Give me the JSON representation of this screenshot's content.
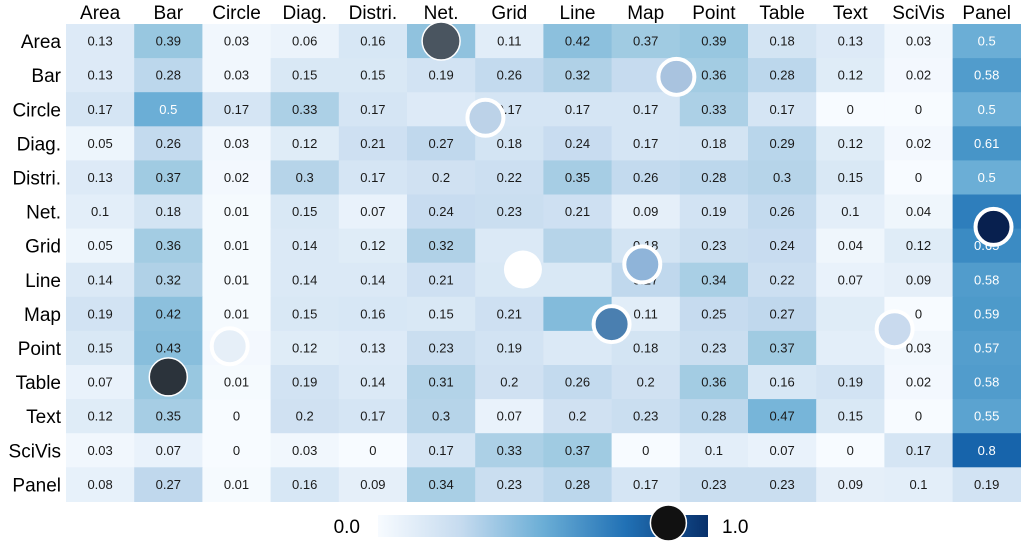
{
  "chart_data": {
    "type": "heatmap",
    "columns": [
      "Area",
      "Bar",
      "Circle",
      "Diag.",
      "Distri.",
      "Net.",
      "Grid",
      "Line",
      "Map",
      "Point",
      "Table",
      "Text",
      "SciVis",
      "Panel"
    ],
    "rows": [
      "Area",
      "Bar",
      "Circle",
      "Diag.",
      "Distri.",
      "Net.",
      "Grid",
      "Line",
      "Map",
      "Point",
      "Table",
      "Text",
      "SciVis",
      "Panel"
    ],
    "values": [
      [
        0.13,
        0.39,
        0.03,
        0.06,
        0.16,
        0.41,
        0.11,
        0.42,
        0.37,
        0.39,
        0.18,
        0.13,
        0.03,
        0.5
      ],
      [
        0.13,
        0.28,
        0.03,
        0.15,
        0.15,
        0.19,
        0.26,
        0.32,
        0.25,
        0.36,
        0.28,
        0.12,
        0.02,
        0.58
      ],
      [
        0.17,
        0.5,
        0.17,
        0.33,
        0.17,
        0.13,
        0.17,
        0.17,
        0.17,
        0.33,
        0.17,
        0,
        0,
        0.5
      ],
      [
        0.05,
        0.26,
        0.03,
        0.12,
        0.21,
        0.27,
        0.18,
        0.24,
        0.17,
        0.18,
        0.29,
        0.12,
        0.02,
        0.61
      ],
      [
        0.13,
        0.37,
        0.02,
        0.3,
        0.17,
        0.2,
        0.22,
        0.35,
        0.26,
        0.28,
        0.3,
        0.15,
        0,
        0.5
      ],
      [
        0.1,
        0.18,
        0.01,
        0.15,
        0.07,
        0.24,
        0.23,
        0.21,
        0.09,
        0.19,
        0.26,
        0.1,
        0.04,
        0.7
      ],
      [
        0.05,
        0.36,
        0.01,
        0.14,
        0.12,
        0.32,
        0.14,
        0.3,
        0.18,
        0.23,
        0.24,
        0.04,
        0.12,
        0.65
      ],
      [
        0.14,
        0.32,
        0.01,
        0.14,
        0.14,
        0.21,
        0.15,
        0.15,
        0.27,
        0.34,
        0.22,
        0.07,
        0.09,
        0.58
      ],
      [
        0.19,
        0.42,
        0.01,
        0.15,
        0.16,
        0.15,
        0.21,
        0.44,
        0.11,
        0.25,
        0.27,
        0.12,
        0,
        0.59
      ],
      [
        0.15,
        0.43,
        0.02,
        0.12,
        0.13,
        0.23,
        0.19,
        0.14,
        0.18,
        0.23,
        0.37,
        0.1,
        0.03,
        0.57
      ],
      [
        0.07,
        0.39,
        0.01,
        0.19,
        0.14,
        0.31,
        0.2,
        0.26,
        0.2,
        0.36,
        0.16,
        0.19,
        0.02,
        0.58
      ],
      [
        0.12,
        0.35,
        0,
        0.2,
        0.17,
        0.3,
        0.07,
        0.2,
        0.23,
        0.28,
        0.47,
        0.15,
        0,
        0.55
      ],
      [
        0.03,
        0.07,
        0,
        0.03,
        0,
        0.17,
        0.33,
        0.37,
        0,
        0.1,
        0.07,
        0,
        0.17,
        0.8
      ],
      [
        0.08,
        0.27,
        0.01,
        0.16,
        0.09,
        0.34,
        0.23,
        0.28,
        0.17,
        0.23,
        0.23,
        0.09,
        0.1,
        0.19
      ]
    ],
    "hidden_values": [
      [
        0,
        5
      ],
      [
        1,
        8
      ],
      [
        2,
        5
      ],
      [
        5,
        13
      ],
      [
        6,
        6
      ],
      [
        6,
        7
      ],
      [
        7,
        6
      ],
      [
        7,
        7
      ],
      [
        8,
        7
      ],
      [
        8,
        11
      ],
      [
        9,
        2
      ],
      [
        9,
        7
      ],
      [
        9,
        11
      ],
      [
        10,
        1
      ]
    ],
    "colorbar": {
      "min_label": "0.0",
      "max_label": "1.0",
      "range": [
        0,
        1
      ],
      "colormap": "Blues"
    },
    "markers": [
      {
        "row": 0,
        "col": 5,
        "dx": 0.0,
        "dy": 0.0,
        "style": "dark",
        "fill": "#4a5560"
      },
      {
        "row": 1,
        "col": 8,
        "dx": 0.45,
        "dy": 0.05,
        "style": "ring",
        "fill": "#a9c3df"
      },
      {
        "row": 2,
        "col": 5,
        "dx": 0.65,
        "dy": 0.25,
        "style": "ring",
        "fill": "#bcd2e8"
      },
      {
        "row": 5,
        "col": 13,
        "dx": 0.1,
        "dy": 0.45,
        "style": "ring",
        "fill": "#08204f"
      },
      {
        "row": 6,
        "col": 6,
        "dx": 0.2,
        "dy": 0.7,
        "style": "solid-white",
        "fill": "#ffffff"
      },
      {
        "row": 7,
        "col": 7,
        "dx": 0.95,
        "dy": -0.45,
        "style": "ring",
        "fill": "#8fb4d9"
      },
      {
        "row": 8,
        "col": 7,
        "dx": 0.5,
        "dy": 0.3,
        "style": "ring",
        "fill": "#4a7fb0"
      },
      {
        "row": 9,
        "col": 11,
        "dx": 0.65,
        "dy": -0.55,
        "style": "ring",
        "fill": "#c9daee"
      },
      {
        "row": 9,
        "col": 2,
        "dx": -0.1,
        "dy": -0.05,
        "style": "ring",
        "fill": "#e6eff8"
      },
      {
        "row": 10,
        "col": 1,
        "dx": 0.0,
        "dy": -0.15,
        "style": "dark",
        "fill": "#2b333b"
      }
    ],
    "colorbar_marker": {
      "value": 0.88,
      "style": "dark",
      "fill": "#111111"
    },
    "title": "",
    "xlabel": "",
    "ylabel": ""
  }
}
